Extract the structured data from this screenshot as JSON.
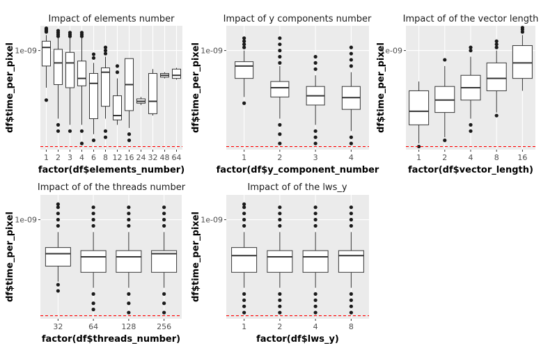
{
  "colors": {
    "panel_bg": "#ebebeb",
    "grid": "#ffffff",
    "box_fill": "#ffffff",
    "box_stroke": "#333333",
    "point": "#1a1a1a",
    "ref_line": "#ff0000"
  },
  "chart_data": [
    {
      "type": "box",
      "title": "Impact of elements number",
      "xlabel": "factor(df$elements_number)",
      "ylabel": "df$time_per_pixel",
      "y_scale": "log",
      "y_ticks": [
        {
          "value": 1e-09,
          "label": "1e-09"
        }
      ],
      "ylim_log10": [
        -10.6,
        -8.6
      ],
      "reference_line": {
        "y_log10": -10.55,
        "style": "dashed"
      },
      "categories": [
        "1",
        "2",
        "3",
        "4",
        "6",
        "8",
        "12",
        "16",
        "24",
        "32",
        "48",
        "64"
      ],
      "boxes": [
        {
          "q1": -9.25,
          "median": -8.95,
          "q3": -8.85,
          "whisker_lo": -9.6,
          "whisker_hi": -8.75,
          "outliers_lo": [
            -9.8
          ],
          "outliers_hi": [
            -8.7,
            -8.68,
            -8.66,
            -8.64
          ]
        },
        {
          "q1": -9.55,
          "median": -9.2,
          "q3": -8.98,
          "whisker_lo": -10.1,
          "whisker_hi": -8.8,
          "outliers_lo": [
            -10.2,
            -10.3
          ],
          "outliers_hi": [
            -8.77,
            -8.74,
            -8.71,
            -8.68
          ]
        },
        {
          "q1": -9.6,
          "median": -9.2,
          "q3": -9.03,
          "whisker_lo": -10.2,
          "whisker_hi": -8.8,
          "outliers_lo": [
            -10.3
          ],
          "outliers_hi": [
            -8.77,
            -8.74,
            -8.71
          ]
        },
        {
          "q1": -9.57,
          "median": -9.45,
          "q3": -9.17,
          "whisker_lo": -10.2,
          "whisker_hi": -8.8,
          "outliers_lo": [
            -10.3,
            -10.5
          ],
          "outliers_hi": [
            -8.77,
            -8.74,
            -8.71
          ]
        },
        {
          "q1": -10.1,
          "median": -9.53,
          "q3": -9.37,
          "whisker_lo": -10.35,
          "whisker_hi": -9.2,
          "outliers_lo": [
            -10.45
          ],
          "outliers_hi": [
            -9.12,
            -9.06
          ]
        },
        {
          "q1": -9.9,
          "median": -9.35,
          "q3": -9.28,
          "whisker_lo": -10.1,
          "whisker_hi": -9.1,
          "outliers_lo": [
            -10.3,
            -10.4
          ],
          "outliers_hi": [
            -9.05,
            -9.0,
            -8.95
          ]
        },
        {
          "q1": -10.12,
          "median": -10.05,
          "q3": -9.73,
          "whisker_lo": -10.2,
          "whisker_hi": -9.45,
          "outliers_lo": [],
          "outliers_hi": [
            -9.35,
            -9.25
          ]
        },
        {
          "q1": -9.97,
          "median": -9.55,
          "q3": -9.13,
          "whisker_lo": -10.25,
          "whisker_hi": -9.13,
          "outliers_lo": [
            -10.35,
            -10.45
          ],
          "outliers_hi": []
        },
        {
          "q1": -9.85,
          "median": -9.82,
          "q3": -9.78,
          "whisker_lo": -9.88,
          "whisker_hi": -9.75,
          "outliers_lo": [],
          "outliers_hi": []
        },
        {
          "q1": -10.02,
          "median": -9.82,
          "q3": -9.37,
          "whisker_lo": -10.05,
          "whisker_hi": -9.3,
          "outliers_lo": [],
          "outliers_hi": []
        },
        {
          "q1": -9.43,
          "median": -9.4,
          "q3": -9.37,
          "whisker_lo": -9.45,
          "whisker_hi": -9.35,
          "outliers_lo": [],
          "outliers_hi": []
        },
        {
          "q1": -9.45,
          "median": -9.4,
          "q3": -9.3,
          "whisker_lo": -9.47,
          "whisker_hi": -9.28,
          "outliers_lo": [],
          "outliers_hi": []
        }
      ]
    },
    {
      "type": "box",
      "title": "Impact of y components number",
      "xlabel": "factor(df$y_component_number",
      "ylabel": "df$time_per_pixel",
      "y_scale": "log",
      "y_ticks": [
        {
          "value": 1e-09,
          "label": "1e-09"
        }
      ],
      "ylim_log10": [
        -10.6,
        -8.6
      ],
      "reference_line": {
        "y_log10": -10.55,
        "style": "dashed"
      },
      "categories": [
        "1",
        "2",
        "3",
        "4"
      ],
      "boxes": [
        {
          "q1": -9.45,
          "median": -9.25,
          "q3": -9.18,
          "whisker_lo": -9.75,
          "whisker_hi": -9.0,
          "outliers_lo": [
            -9.85
          ],
          "outliers_hi": [
            -8.95,
            -8.9,
            -8.85,
            -8.8
          ]
        },
        {
          "q1": -9.75,
          "median": -9.6,
          "q3": -9.5,
          "whisker_lo": -10.1,
          "whisker_hi": -9.25,
          "outliers_lo": [
            -10.2,
            -10.35,
            -10.5
          ],
          "outliers_hi": [
            -9.2,
            -9.1,
            -9.0,
            -8.9,
            -8.8
          ]
        },
        {
          "q1": -9.88,
          "median": -9.73,
          "q3": -9.58,
          "whisker_lo": -10.2,
          "whisker_hi": -9.4,
          "outliers_lo": [
            -10.3,
            -10.4,
            -10.5
          ],
          "outliers_hi": [
            -9.3,
            -9.2,
            -9.1
          ]
        },
        {
          "q1": -9.95,
          "median": -9.76,
          "q3": -9.58,
          "whisker_lo": -10.3,
          "whisker_hi": -9.35,
          "outliers_lo": [
            -10.4,
            -10.5
          ],
          "outliers_hi": [
            -9.25,
            -9.15,
            -9.05,
            -8.95
          ]
        }
      ]
    },
    {
      "type": "box",
      "title": "Impact of of the vector length",
      "xlabel": "factor(df$vector_length)",
      "ylabel": "df$time_per_pixel",
      "y_scale": "log",
      "y_ticks": [
        {
          "value": 1e-09,
          "label": "1e-09"
        }
      ],
      "ylim_log10": [
        -10.6,
        -8.6
      ],
      "reference_line": {
        "y_log10": -10.55,
        "style": "dashed"
      },
      "categories": [
        "1",
        "2",
        "4",
        "8",
        "16"
      ],
      "boxes": [
        {
          "q1": -10.2,
          "median": -9.98,
          "q3": -9.65,
          "whisker_lo": -10.5,
          "whisker_hi": -9.5,
          "outliers_lo": [
            -10.55
          ],
          "outliers_hi": []
        },
        {
          "q1": -10.0,
          "median": -9.8,
          "q3": -9.58,
          "whisker_lo": -10.4,
          "whisker_hi": -9.25,
          "outliers_lo": [
            -10.45
          ],
          "outliers_hi": [
            -9.15
          ]
        },
        {
          "q1": -9.8,
          "median": -9.6,
          "q3": -9.4,
          "whisker_lo": -10.1,
          "whisker_hi": -9.1,
          "outliers_lo": [
            -10.2,
            -10.3
          ],
          "outliers_hi": [
            -9.0,
            -8.95
          ]
        },
        {
          "q1": -9.65,
          "median": -9.45,
          "q3": -9.2,
          "whisker_lo": -10.0,
          "whisker_hi": -9.0,
          "outliers_lo": [
            -10.05
          ],
          "outliers_hi": [
            -8.95,
            -8.9,
            -8.85
          ]
        },
        {
          "q1": -9.45,
          "median": -9.2,
          "q3": -8.92,
          "whisker_lo": -9.65,
          "whisker_hi": -8.75,
          "outliers_lo": [],
          "outliers_hi": [
            -8.7,
            -8.66,
            -8.63
          ]
        }
      ]
    },
    {
      "type": "box",
      "title": "Impact of of the threads number",
      "xlabel": "factor(df$threads_number)",
      "ylabel": "df$time_per_pixel",
      "y_scale": "log",
      "y_ticks": [
        {
          "value": 1e-09,
          "label": "1e-09"
        }
      ],
      "ylim_log10": [
        -10.6,
        -8.6
      ],
      "reference_line": {
        "y_log10": -10.55,
        "style": "dashed"
      },
      "categories": [
        "32",
        "64",
        "128",
        "256"
      ],
      "boxes": [
        {
          "q1": -9.75,
          "median": -9.55,
          "q3": -9.45,
          "whisker_lo": -10.0,
          "whisker_hi": -9.2,
          "outliers_lo": [
            -10.05,
            -10.15
          ],
          "outliers_hi": [
            -9.1,
            -9.0,
            -8.9,
            -8.8,
            -8.75
          ]
        },
        {
          "q1": -9.85,
          "median": -9.6,
          "q3": -9.5,
          "whisker_lo": -10.1,
          "whisker_hi": -9.2,
          "outliers_lo": [
            -10.2,
            -10.35,
            -10.45
          ],
          "outliers_hi": [
            -9.1,
            -9.0,
            -8.9,
            -8.8
          ]
        },
        {
          "q1": -9.85,
          "median": -9.6,
          "q3": -9.5,
          "whisker_lo": -10.1,
          "whisker_hi": -9.2,
          "outliers_lo": [
            -10.2,
            -10.35,
            -10.5
          ],
          "outliers_hi": [
            -9.1,
            -9.0,
            -8.9,
            -8.8
          ]
        },
        {
          "q1": -9.85,
          "median": -9.55,
          "q3": -9.5,
          "whisker_lo": -10.1,
          "whisker_hi": -9.2,
          "outliers_lo": [
            -10.2,
            -10.35,
            -10.5
          ],
          "outliers_hi": [
            -9.1,
            -9.0,
            -8.9,
            -8.8
          ]
        }
      ]
    },
    {
      "type": "box",
      "title": "Impact of of the lws_y",
      "xlabel": "factor(df$lws_y)",
      "ylabel": "df$time_per_pixel",
      "y_scale": "log",
      "y_ticks": [
        {
          "value": 1e-09,
          "label": "1e-09"
        }
      ],
      "ylim_log10": [
        -10.6,
        -8.6
      ],
      "reference_line": {
        "y_log10": -10.55,
        "style": "dashed"
      },
      "categories": [
        "1",
        "2",
        "4",
        "8"
      ],
      "boxes": [
        {
          "q1": -9.85,
          "median": -9.58,
          "q3": -9.45,
          "whisker_lo": -10.1,
          "whisker_hi": -9.2,
          "outliers_lo": [
            -10.2,
            -10.3,
            -10.4,
            -10.5
          ],
          "outliers_hi": [
            -9.1,
            -9.0,
            -8.9,
            -8.8,
            -8.75
          ]
        },
        {
          "q1": -9.85,
          "median": -9.6,
          "q3": -9.5,
          "whisker_lo": -10.1,
          "whisker_hi": -9.2,
          "outliers_lo": [
            -10.2,
            -10.3,
            -10.4,
            -10.5
          ],
          "outliers_hi": [
            -9.1,
            -9.0,
            -8.9,
            -8.8
          ]
        },
        {
          "q1": -9.85,
          "median": -9.6,
          "q3": -9.5,
          "whisker_lo": -10.1,
          "whisker_hi": -9.2,
          "outliers_lo": [
            -10.2,
            -10.3,
            -10.4,
            -10.5
          ],
          "outliers_hi": [
            -9.1,
            -9.0,
            -8.9,
            -8.8
          ]
        },
        {
          "q1": -9.85,
          "median": -9.58,
          "q3": -9.5,
          "whisker_lo": -10.1,
          "whisker_hi": -9.2,
          "outliers_lo": [
            -10.2,
            -10.3,
            -10.4,
            -10.5
          ],
          "outliers_hi": [
            -9.1,
            -9.0,
            -8.9,
            -8.8
          ]
        }
      ]
    }
  ]
}
